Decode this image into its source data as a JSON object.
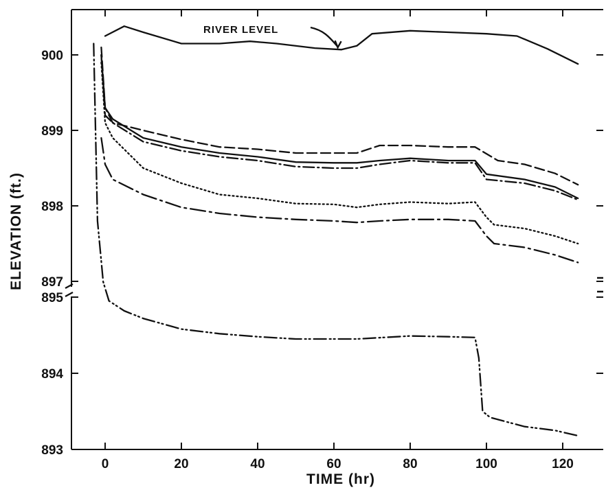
{
  "chart_data": {
    "type": "line",
    "title": "",
    "xlabel": "TIME (hr)",
    "ylabel": "ELEVATION (ft.)",
    "xlim": [
      -10,
      132
    ],
    "ylim_upper_panel": [
      897,
      900.6
    ],
    "ylim_lower_panel": [
      893,
      895
    ],
    "broken_y_axis": true,
    "grid": false,
    "x_ticks": [
      0,
      20,
      40,
      60,
      80,
      100,
      120
    ],
    "x_tick_labels": [
      "0",
      "20",
      "40",
      "60",
      "80",
      "100",
      "120"
    ],
    "y_ticks": [
      900,
      899,
      898,
      897,
      895,
      894,
      893
    ],
    "y_tick_labels": [
      "900",
      "899",
      "898",
      "897",
      "895",
      "894",
      "893"
    ],
    "annotations": [
      {
        "text": "RIVER LEVEL",
        "x": 61,
        "y": 900.1
      }
    ],
    "series": [
      {
        "name": "RIVER LEVEL",
        "line_style": "solid",
        "points": [
          [
            0,
            900.25
          ],
          [
            5,
            900.38
          ],
          [
            10,
            900.3
          ],
          [
            20,
            900.15
          ],
          [
            30,
            900.15
          ],
          [
            38,
            900.18
          ],
          [
            45,
            900.15
          ],
          [
            55,
            900.09
          ],
          [
            62,
            900.07
          ],
          [
            66,
            900.12
          ],
          [
            70,
            900.28
          ],
          [
            80,
            900.32
          ],
          [
            90,
            900.3
          ],
          [
            100,
            900.28
          ],
          [
            108,
            900.25
          ],
          [
            116,
            900.08
          ],
          [
            124,
            899.88
          ]
        ]
      },
      {
        "line_style": "long-dash",
        "points": [
          [
            -1,
            900.1
          ],
          [
            0,
            899.3
          ],
          [
            2,
            899.1
          ],
          [
            10,
            899.0
          ],
          [
            20,
            898.88
          ],
          [
            30,
            898.78
          ],
          [
            40,
            898.75
          ],
          [
            50,
            898.7
          ],
          [
            60,
            898.7
          ],
          [
            66,
            898.7
          ],
          [
            72,
            898.8
          ],
          [
            80,
            898.8
          ],
          [
            90,
            898.78
          ],
          [
            97,
            898.78
          ],
          [
            103,
            898.6
          ],
          [
            110,
            898.55
          ],
          [
            118,
            898.43
          ],
          [
            124,
            898.28
          ]
        ]
      },
      {
        "line_style": "solid",
        "points": [
          [
            -1,
            900.0
          ],
          [
            0,
            899.3
          ],
          [
            2,
            899.15
          ],
          [
            10,
            898.9
          ],
          [
            20,
            898.78
          ],
          [
            30,
            898.7
          ],
          [
            40,
            898.65
          ],
          [
            50,
            898.58
          ],
          [
            60,
            898.57
          ],
          [
            66,
            898.57
          ],
          [
            72,
            898.6
          ],
          [
            80,
            898.63
          ],
          [
            90,
            898.6
          ],
          [
            97,
            898.6
          ],
          [
            100,
            898.42
          ],
          [
            110,
            898.35
          ],
          [
            118,
            898.25
          ],
          [
            124,
            898.1
          ]
        ]
      },
      {
        "line_style": "dash-dot",
        "points": [
          [
            -1,
            900.0
          ],
          [
            0,
            899.2
          ],
          [
            2,
            899.1
          ],
          [
            10,
            898.85
          ],
          [
            20,
            898.73
          ],
          [
            30,
            898.65
          ],
          [
            40,
            898.6
          ],
          [
            50,
            898.52
          ],
          [
            60,
            898.5
          ],
          [
            66,
            898.5
          ],
          [
            72,
            898.55
          ],
          [
            80,
            898.6
          ],
          [
            90,
            898.57
          ],
          [
            97,
            898.57
          ],
          [
            100,
            898.35
          ],
          [
            110,
            898.3
          ],
          [
            118,
            898.2
          ],
          [
            124,
            898.08
          ]
        ]
      },
      {
        "line_style": "dotted",
        "points": [
          [
            -1,
            899.9
          ],
          [
            0,
            899.1
          ],
          [
            2,
            898.9
          ],
          [
            10,
            898.5
          ],
          [
            20,
            898.3
          ],
          [
            30,
            898.15
          ],
          [
            40,
            898.1
          ],
          [
            50,
            898.03
          ],
          [
            60,
            898.02
          ],
          [
            66,
            897.98
          ],
          [
            72,
            898.02
          ],
          [
            80,
            898.05
          ],
          [
            90,
            898.03
          ],
          [
            97,
            898.05
          ],
          [
            100,
            897.85
          ],
          [
            102,
            897.75
          ],
          [
            110,
            897.7
          ],
          [
            118,
            897.6
          ],
          [
            124,
            897.5
          ]
        ]
      },
      {
        "line_style": "long-dash-dot",
        "points": [
          [
            -1,
            898.9
          ],
          [
            0,
            898.55
          ],
          [
            2,
            898.35
          ],
          [
            10,
            898.15
          ],
          [
            20,
            897.98
          ],
          [
            30,
            897.9
          ],
          [
            40,
            897.85
          ],
          [
            50,
            897.82
          ],
          [
            60,
            897.8
          ],
          [
            66,
            897.78
          ],
          [
            72,
            897.8
          ],
          [
            80,
            897.82
          ],
          [
            90,
            897.82
          ],
          [
            97,
            897.8
          ],
          [
            100,
            897.6
          ],
          [
            102,
            897.5
          ],
          [
            110,
            897.45
          ],
          [
            118,
            897.35
          ],
          [
            124,
            897.25
          ]
        ]
      },
      {
        "line_style": "dash-dot-dot",
        "points": [
          [
            -3,
            900.15
          ],
          [
            -2,
            897.8
          ],
          [
            -0.5,
            895.2
          ],
          [
            1,
            894.95
          ],
          [
            5,
            894.82
          ],
          [
            10,
            894.72
          ],
          [
            20,
            894.58
          ],
          [
            30,
            894.52
          ],
          [
            40,
            894.48
          ],
          [
            50,
            894.45
          ],
          [
            60,
            894.45
          ],
          [
            66,
            894.45
          ],
          [
            80,
            894.49
          ],
          [
            90,
            894.48
          ],
          [
            97,
            894.47
          ],
          [
            98,
            894.2
          ],
          [
            99,
            893.5
          ],
          [
            101,
            893.42
          ],
          [
            110,
            893.3
          ],
          [
            118,
            893.25
          ],
          [
            124,
            893.18
          ]
        ]
      }
    ]
  }
}
